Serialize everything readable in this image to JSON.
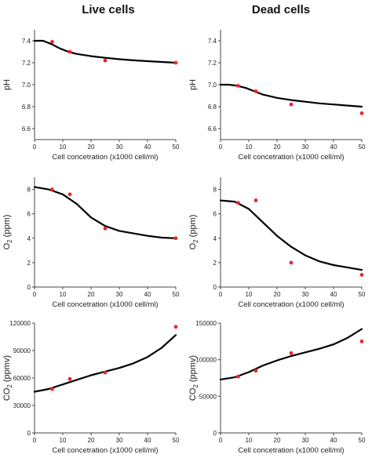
{
  "column_titles": [
    "Live cells",
    "Dead cells"
  ],
  "chart_data": [
    {
      "type": "scatter",
      "panel": "live-ph",
      "ylabel": "pH",
      "xlabel": "Cell concetration (x1000 cell/ml)",
      "xlim": [
        0,
        50
      ],
      "ylim": [
        6.5,
        7.5
      ],
      "xticks": [
        0,
        10,
        20,
        30,
        40,
        50
      ],
      "yticks": [
        6.6,
        6.8,
        7.0,
        7.2,
        7.4
      ],
      "ytick_labels": [
        "6.6",
        "6.8",
        "7.0",
        "7.2",
        "7.4"
      ],
      "points": {
        "x": [
          6.25,
          12.5,
          25,
          50
        ],
        "y": [
          7.39,
          7.3,
          7.22,
          7.2
        ]
      },
      "fit_line": {
        "x": [
          0,
          3,
          6,
          9,
          12,
          15,
          20,
          25,
          30,
          35,
          40,
          45,
          50
        ],
        "y": [
          7.4,
          7.4,
          7.37,
          7.33,
          7.3,
          7.28,
          7.26,
          7.245,
          7.232,
          7.222,
          7.214,
          7.207,
          7.2
        ]
      },
      "point_color": "#e8262a",
      "line_color": "#000000"
    },
    {
      "type": "scatter",
      "panel": "dead-ph",
      "ylabel": "pH",
      "xlabel": "Cell concetration (x1000 cell/ml)",
      "xlim": [
        0,
        50
      ],
      "ylim": [
        6.5,
        7.5
      ],
      "xticks": [
        0,
        10,
        20,
        30,
        40,
        50
      ],
      "yticks": [
        6.6,
        6.8,
        7.0,
        7.2,
        7.4
      ],
      "ytick_labels": [
        "6.6",
        "6.8",
        "7.0",
        "7.2",
        "7.4"
      ],
      "points": {
        "x": [
          6.25,
          12.5,
          25,
          50
        ],
        "y": [
          6.99,
          6.94,
          6.82,
          6.74
        ]
      },
      "fit_line": {
        "x": [
          0,
          3,
          6,
          9,
          12,
          15,
          20,
          25,
          30,
          35,
          40,
          45,
          50
        ],
        "y": [
          7.0,
          7.0,
          6.99,
          6.97,
          6.94,
          6.91,
          6.88,
          6.86,
          6.845,
          6.83,
          6.82,
          6.81,
          6.8
        ]
      },
      "point_color": "#e8262a",
      "line_color": "#000000"
    },
    {
      "type": "scatter",
      "panel": "live-o2",
      "ylabel": "O2 (ppm)",
      "xlabel": "Cell concetration (x1000 cell/ml)",
      "xlim": [
        0,
        50
      ],
      "ylim": [
        0,
        9
      ],
      "xticks": [
        0,
        10,
        20,
        30,
        40,
        50
      ],
      "yticks": [
        0,
        2,
        4,
        6,
        8
      ],
      "ytick_labels": [
        "0",
        "2",
        "4",
        "6",
        "8"
      ],
      "points": {
        "x": [
          6.25,
          12.5,
          25,
          50
        ],
        "y": [
          8.0,
          7.6,
          4.8,
          4.0
        ]
      },
      "fit_line": {
        "x": [
          0,
          5,
          10,
          15,
          20,
          25,
          30,
          35,
          40,
          45,
          50
        ],
        "y": [
          8.2,
          8.0,
          7.6,
          6.8,
          5.7,
          5.0,
          4.6,
          4.4,
          4.2,
          4.05,
          4.0
        ]
      },
      "point_color": "#e8262a",
      "line_color": "#000000"
    },
    {
      "type": "scatter",
      "panel": "dead-o2",
      "ylabel": "O2 (ppm)",
      "xlabel": "Cell concetration (x1000 cell/ml)",
      "xlim": [
        0,
        50
      ],
      "ylim": [
        0,
        9
      ],
      "xticks": [
        0,
        10,
        20,
        30,
        40,
        50
      ],
      "yticks": [
        0,
        2,
        4,
        6,
        8
      ],
      "ytick_labels": [
        "0",
        "2",
        "4",
        "6",
        "8"
      ],
      "points": {
        "x": [
          6.25,
          12.5,
          25,
          50
        ],
        "y": [
          6.9,
          7.1,
          2.0,
          1.0
        ]
      },
      "fit_line": {
        "x": [
          0,
          5,
          10,
          15,
          20,
          25,
          30,
          35,
          40,
          45,
          50
        ],
        "y": [
          7.1,
          7.0,
          6.4,
          5.3,
          4.2,
          3.3,
          2.6,
          2.1,
          1.8,
          1.6,
          1.4
        ]
      },
      "point_color": "#e8262a",
      "line_color": "#000000"
    },
    {
      "type": "scatter",
      "panel": "live-co2",
      "ylabel": "CO2 (ppmv)",
      "xlabel": "Cell concetration (x1000 cell/ml)",
      "xlim": [
        0,
        50
      ],
      "ylim": [
        0,
        120000
      ],
      "xticks": [
        0,
        10,
        20,
        30,
        40,
        50
      ],
      "yticks": [
        0,
        30000,
        60000,
        90000,
        120000
      ],
      "ytick_labels": [
        "0",
        "30000",
        "60000",
        "90000",
        "120000"
      ],
      "points": {
        "x": [
          6.25,
          12.5,
          25,
          50
        ],
        "y": [
          48000,
          59000,
          66000,
          116000
        ]
      },
      "fit_line": {
        "x": [
          0,
          5,
          10,
          15,
          20,
          25,
          30,
          35,
          40,
          45,
          50
        ],
        "y": [
          45000,
          48000,
          53000,
          58000,
          63000,
          67000,
          71000,
          76000,
          83000,
          93000,
          107000
        ]
      },
      "point_color": "#e8262a",
      "line_color": "#000000"
    },
    {
      "type": "scatter",
      "panel": "dead-co2",
      "ylabel": "CO2 (ppmv)",
      "xlabel": "Cell concetration (x1000 cell/ml)",
      "xlim": [
        0,
        50
      ],
      "ylim": [
        0,
        150000
      ],
      "xticks": [
        0,
        10,
        20,
        30,
        40,
        50
      ],
      "yticks": [
        0,
        50000,
        100000,
        150000
      ],
      "ytick_labels": [
        "0",
        "50000",
        "100000",
        "150000"
      ],
      "points": {
        "x": [
          6.25,
          12.5,
          25,
          50
        ],
        "y": [
          77000,
          85000,
          109000,
          125000
        ]
      },
      "fit_line": {
        "x": [
          0,
          5,
          10,
          15,
          20,
          25,
          30,
          35,
          40,
          45,
          50
        ],
        "y": [
          73000,
          76000,
          83000,
          92000,
          99000,
          105000,
          110000,
          115000,
          121000,
          130000,
          142000
        ]
      },
      "point_color": "#e8262a",
      "line_color": "#000000"
    }
  ]
}
